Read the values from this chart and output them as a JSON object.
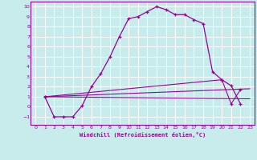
{
  "xlabel": "Windchill (Refroidissement éolien,°C)",
  "bg_color": "#c8ecec",
  "line_color": "#990099",
  "grid_color": "#ffffff",
  "xlim": [
    -0.5,
    23.5
  ],
  "ylim": [
    -1.8,
    10.5
  ],
  "xticks": [
    0,
    1,
    2,
    3,
    4,
    5,
    6,
    7,
    8,
    9,
    10,
    11,
    12,
    13,
    14,
    15,
    16,
    17,
    18,
    19,
    20,
    21,
    22,
    23
  ],
  "yticks": [
    -1,
    0,
    1,
    2,
    3,
    4,
    5,
    6,
    7,
    8,
    9,
    10
  ],
  "line1_x": [
    1,
    2,
    3,
    4,
    5,
    6,
    7,
    8,
    9,
    10,
    11,
    12,
    13,
    14,
    15,
    16,
    17,
    18,
    19,
    20,
    21,
    22
  ],
  "line1_y": [
    1,
    -1,
    -1,
    -1,
    0.1,
    2.0,
    3.3,
    5.0,
    7.0,
    8.8,
    9.0,
    9.5,
    10.0,
    9.7,
    9.2,
    9.2,
    8.7,
    8.3,
    3.5,
    2.7,
    2.1,
    0.3
  ],
  "line2_x": [
    1,
    23
  ],
  "line2_y": [
    1,
    1.8
  ],
  "line3_x": [
    1,
    23
  ],
  "line3_y": [
    1,
    0.8
  ],
  "line4_x": [
    1,
    20,
    21,
    22
  ],
  "line4_y": [
    1,
    2.7,
    0.3,
    1.7
  ]
}
